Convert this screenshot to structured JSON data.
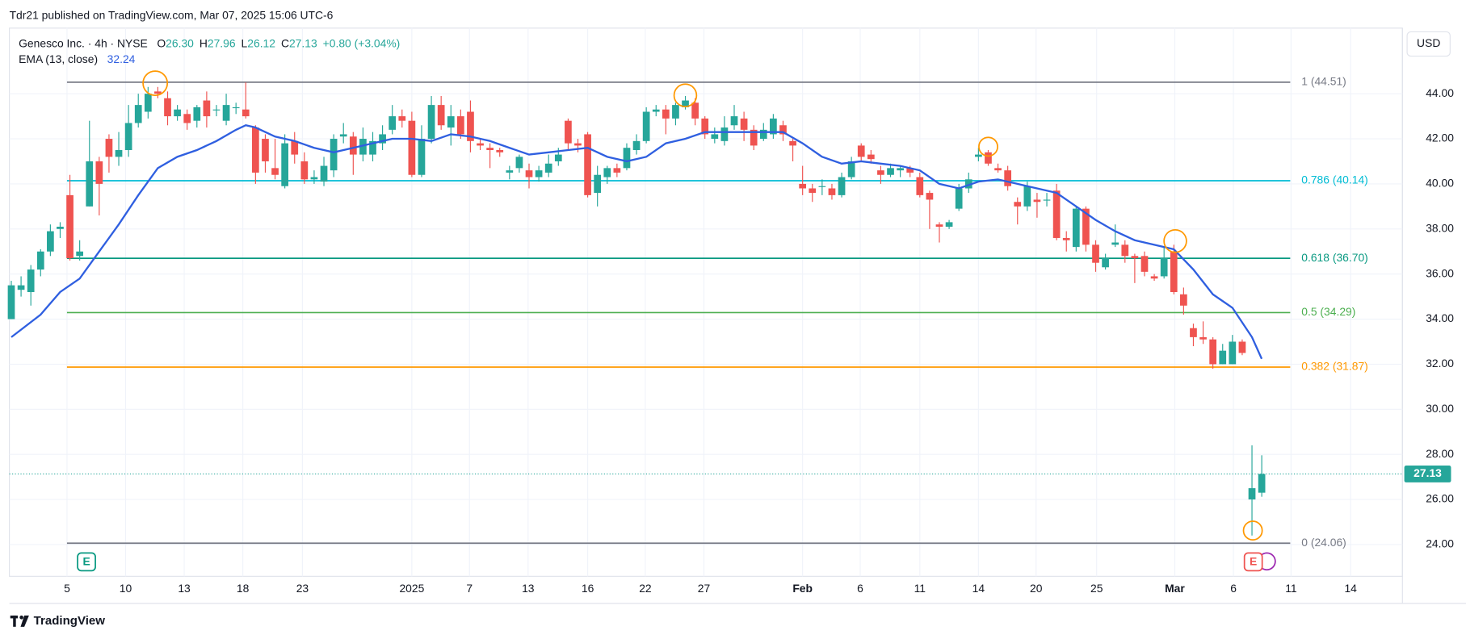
{
  "published": "Tdr21 published on TradingView.com, Mar 07, 2025 15:06 UTC-6",
  "brand": "TradingView",
  "chart_data": {
    "type": "candlestick",
    "title": "Genesco Inc. · 4h · NYSE",
    "ohlc": [
      {
        "key": "O",
        "value": 26.3,
        "label": "26.30"
      },
      {
        "key": "H",
        "value": 27.96,
        "label": "27.96"
      },
      {
        "key": "L",
        "value": 26.12,
        "label": "26.12"
      },
      {
        "key": "C",
        "value": 27.13,
        "label": "27.13"
      }
    ],
    "change": "+0.80 (+3.04%)",
    "currency": "USD",
    "up_color": "#26a69a",
    "down_color": "#ef5350",
    "candles": [
      [
        34.0,
        35.7,
        34.0,
        35.5
      ],
      [
        35.3,
        35.9,
        35.0,
        35.5
      ],
      [
        35.2,
        36.4,
        34.6,
        36.2
      ],
      [
        36.2,
        37.1,
        35.9,
        37.0
      ],
      [
        37.0,
        38.2,
        36.8,
        37.9
      ],
      [
        38.0,
        38.3,
        37.6,
        38.1
      ],
      [
        39.5,
        40.4,
        36.6,
        36.7
      ],
      [
        36.8,
        37.5,
        36.6,
        37.0
      ],
      [
        39.0,
        42.8,
        39.0,
        41.0
      ],
      [
        41.0,
        41.2,
        38.6,
        40.0
      ],
      [
        42.0,
        42.2,
        40.5,
        41.2
      ],
      [
        41.2,
        42.3,
        40.8,
        41.5
      ],
      [
        41.5,
        43.5,
        41.2,
        42.7
      ],
      [
        42.7,
        44.0,
        42.5,
        43.5
      ],
      [
        43.2,
        44.3,
        42.9,
        44.0
      ],
      [
        44.1,
        44.3,
        43.8,
        44.0
      ],
      [
        43.8,
        44.1,
        42.6,
        43.0
      ],
      [
        43.0,
        43.5,
        42.8,
        43.3
      ],
      [
        43.1,
        43.3,
        42.4,
        42.7
      ],
      [
        42.8,
        43.5,
        42.5,
        43.4
      ],
      [
        43.7,
        44.1,
        42.5,
        43.0
      ],
      [
        43.3,
        43.5,
        43.0,
        43.3
      ],
      [
        42.8,
        44.0,
        42.6,
        43.5
      ],
      [
        43.4,
        43.6,
        43.1,
        43.4
      ],
      [
        43.3,
        44.5,
        42.9,
        43.0
      ],
      [
        42.5,
        42.6,
        40.0,
        40.5
      ],
      [
        42.0,
        42.2,
        40.5,
        41.0
      ],
      [
        40.7,
        42.0,
        40.2,
        40.4
      ],
      [
        39.9,
        42.2,
        39.8,
        41.8
      ],
      [
        41.9,
        42.3,
        40.9,
        41.3
      ],
      [
        41.0,
        41.4,
        40.0,
        40.2
      ],
      [
        40.2,
        40.6,
        40.0,
        40.3
      ],
      [
        40.1,
        41.2,
        39.9,
        40.8
      ],
      [
        40.6,
        42.2,
        40.3,
        42.0
      ],
      [
        42.1,
        42.7,
        41.8,
        42.2
      ],
      [
        42.1,
        42.3,
        40.4,
        41.3
      ],
      [
        41.3,
        42.5,
        41.0,
        42.0
      ],
      [
        41.3,
        42.3,
        41.0,
        41.9
      ],
      [
        41.8,
        42.6,
        41.5,
        42.2
      ],
      [
        42.4,
        43.5,
        42.2,
        43.0
      ],
      [
        43.0,
        43.3,
        42.5,
        42.8
      ],
      [
        42.8,
        43.2,
        40.3,
        40.4
      ],
      [
        40.4,
        42.6,
        40.3,
        42.0
      ],
      [
        42.0,
        43.9,
        41.8,
        43.5
      ],
      [
        43.5,
        43.9,
        42.4,
        42.6
      ],
      [
        42.5,
        43.5,
        41.7,
        43.0
      ],
      [
        43.0,
        43.3,
        42.0,
        42.2
      ],
      [
        43.2,
        43.7,
        41.4,
        41.9
      ],
      [
        41.8,
        42.0,
        41.5,
        41.7
      ],
      [
        41.6,
        41.8,
        40.7,
        41.5
      ],
      [
        41.5,
        41.6,
        41.2,
        41.4
      ],
      [
        40.5,
        40.8,
        40.2,
        40.6
      ],
      [
        40.7,
        41.3,
        40.5,
        41.2
      ],
      [
        40.6,
        40.9,
        39.8,
        40.3
      ],
      [
        40.3,
        40.8,
        40.1,
        40.6
      ],
      [
        40.5,
        41.3,
        40.3,
        40.9
      ],
      [
        41.0,
        41.6,
        40.8,
        41.3
      ],
      [
        42.8,
        42.9,
        41.5,
        41.8
      ],
      [
        41.8,
        42.0,
        41.4,
        41.7
      ],
      [
        42.2,
        42.3,
        39.4,
        39.5
      ],
      [
        39.6,
        40.8,
        39.0,
        40.4
      ],
      [
        40.3,
        40.8,
        40.0,
        40.7
      ],
      [
        40.7,
        40.9,
        40.3,
        40.5
      ],
      [
        40.7,
        41.8,
        40.6,
        41.6
      ],
      [
        41.5,
        42.2,
        41.3,
        41.9
      ],
      [
        41.9,
        43.4,
        41.8,
        43.2
      ],
      [
        43.2,
        43.5,
        43.0,
        43.3
      ],
      [
        43.3,
        43.5,
        42.2,
        42.9
      ],
      [
        42.9,
        43.6,
        42.6,
        43.5
      ],
      [
        43.4,
        43.9,
        43.3,
        43.7
      ],
      [
        43.6,
        43.8,
        42.6,
        42.9
      ],
      [
        42.9,
        43.0,
        42.0,
        42.2
      ],
      [
        42.0,
        42.5,
        41.8,
        42.2
      ],
      [
        41.9,
        43.0,
        41.7,
        42.5
      ],
      [
        42.6,
        43.5,
        42.4,
        43.0
      ],
      [
        42.9,
        43.2,
        41.9,
        42.4
      ],
      [
        42.4,
        42.6,
        41.5,
        41.7
      ],
      [
        42.0,
        42.7,
        41.9,
        42.4
      ],
      [
        42.2,
        43.1,
        42.0,
        42.9
      ],
      [
        42.6,
        42.8,
        41.9,
        42.2
      ],
      [
        41.9,
        42.0,
        41.0,
        41.7
      ],
      [
        40.0,
        40.8,
        39.5,
        39.8
      ],
      [
        39.8,
        40.0,
        39.2,
        39.6
      ],
      [
        39.9,
        40.2,
        39.5,
        39.9
      ],
      [
        39.8,
        40.0,
        39.3,
        39.5
      ],
      [
        39.5,
        40.5,
        39.4,
        40.3
      ],
      [
        40.3,
        41.2,
        40.2,
        41.0
      ],
      [
        41.7,
        41.8,
        41.0,
        41.2
      ],
      [
        41.3,
        41.5,
        40.9,
        41.1
      ],
      [
        40.6,
        40.8,
        40.0,
        40.4
      ],
      [
        40.4,
        40.9,
        40.3,
        40.7
      ],
      [
        40.6,
        40.8,
        40.3,
        40.7
      ],
      [
        40.7,
        40.8,
        40.3,
        40.5
      ],
      [
        40.3,
        40.5,
        39.4,
        39.5
      ],
      [
        39.6,
        39.7,
        38.0,
        39.3
      ],
      [
        38.2,
        38.3,
        37.4,
        38.1
      ],
      [
        38.1,
        38.4,
        38.0,
        38.3
      ],
      [
        38.9,
        40.0,
        38.8,
        39.8
      ],
      [
        39.8,
        40.5,
        39.6,
        40.2
      ],
      [
        41.2,
        41.6,
        41.0,
        41.3
      ],
      [
        41.4,
        41.5,
        40.8,
        40.9
      ],
      [
        40.7,
        40.9,
        40.5,
        40.6
      ],
      [
        40.6,
        40.8,
        39.7,
        39.9
      ],
      [
        39.2,
        39.4,
        38.2,
        39.0
      ],
      [
        39.0,
        40.1,
        38.8,
        39.9
      ],
      [
        39.3,
        39.6,
        38.5,
        39.2
      ],
      [
        39.3,
        39.6,
        39.0,
        39.3
      ],
      [
        39.7,
        40.0,
        37.5,
        37.6
      ],
      [
        37.6,
        37.9,
        37.0,
        37.5
      ],
      [
        37.2,
        39.0,
        37.0,
        38.9
      ],
      [
        38.9,
        39.0,
        37.0,
        37.3
      ],
      [
        37.3,
        37.5,
        36.1,
        36.5
      ],
      [
        36.3,
        36.9,
        36.2,
        36.7
      ],
      [
        37.3,
        38.2,
        37.2,
        37.4
      ],
      [
        37.3,
        37.5,
        36.5,
        36.8
      ],
      [
        36.8,
        36.9,
        35.6,
        36.7
      ],
      [
        36.8,
        37.0,
        35.9,
        36.1
      ],
      [
        35.9,
        36.0,
        35.7,
        35.8
      ],
      [
        35.9,
        37.2,
        35.8,
        36.7
      ],
      [
        37.0,
        37.3,
        35.1,
        35.2
      ],
      [
        35.1,
        35.4,
        34.2,
        34.6
      ],
      [
        33.6,
        33.8,
        32.8,
        33.2
      ],
      [
        33.2,
        33.9,
        32.9,
        33.1
      ],
      [
        33.1,
        33.2,
        31.8,
        32.0
      ],
      [
        32.0,
        32.9,
        32.0,
        32.6
      ],
      [
        32.0,
        33.3,
        32.0,
        33.0
      ],
      [
        33.0,
        33.1,
        32.4,
        32.5
      ],
      [
        26.0,
        28.4,
        24.4,
        26.5
      ],
      [
        26.3,
        27.96,
        26.12,
        27.13
      ]
    ],
    "ema": {
      "name": "EMA (13, close)",
      "color": "#2f5fe0",
      "last_value": 32.24,
      "x": [
        0,
        3,
        5,
        7,
        9,
        11,
        13,
        15,
        17,
        19,
        21,
        23,
        24,
        25,
        27,
        29,
        31,
        33,
        35,
        37,
        39,
        41,
        43,
        45,
        47,
        49,
        51,
        53,
        55,
        57,
        59,
        61,
        63,
        65,
        67,
        69,
        71,
        73,
        75,
        77,
        79,
        81,
        83,
        85,
        87,
        89,
        91,
        93,
        95,
        97,
        99,
        101,
        103,
        105,
        107,
        109,
        111,
        113,
        115,
        117,
        119,
        121,
        123,
        125,
        127,
        128
      ],
      "values": [
        33.2,
        34.2,
        35.2,
        35.8,
        37.0,
        38.2,
        39.5,
        40.7,
        41.2,
        41.5,
        41.9,
        42.4,
        42.6,
        42.5,
        42.1,
        41.9,
        41.6,
        41.4,
        41.6,
        41.8,
        42.0,
        42.0,
        41.9,
        42.2,
        42.1,
        41.9,
        41.6,
        41.3,
        41.4,
        41.5,
        41.6,
        41.2,
        41.0,
        41.2,
        41.8,
        42.0,
        42.3,
        42.3,
        42.3,
        42.3,
        42.3,
        41.8,
        41.2,
        40.9,
        41.0,
        40.9,
        40.8,
        40.6,
        40.0,
        39.8,
        40.1,
        40.2,
        40.0,
        39.8,
        39.6,
        39.0,
        38.4,
        37.9,
        37.5,
        37.3,
        37.1,
        36.2,
        35.1,
        34.5,
        33.2,
        32.24
      ]
    },
    "fib_levels": [
      {
        "value": 44.51,
        "label": "1 (44.51)",
        "color": "#787b86"
      },
      {
        "value": 40.14,
        "label": "0.786 (40.14)",
        "color": "#00bcd4"
      },
      {
        "value": 36.7,
        "label": "0.618 (36.70)",
        "color": "#089981"
      },
      {
        "value": 34.29,
        "label": "0.5 (34.29)",
        "color": "#4caf50"
      },
      {
        "value": 31.87,
        "label": "0.382 (31.87)",
        "color": "#ff9800"
      },
      {
        "value": 24.06,
        "label": "0 (24.06)",
        "color": "#787b86"
      }
    ],
    "last_price": 27.13,
    "events": [
      "E",
      "E"
    ],
    "ylim": [
      22.59,
      46.91
    ],
    "yticks": [
      {
        "value": 24,
        "label": "24.00"
      },
      {
        "value": 26,
        "label": "26.00"
      },
      {
        "value": 28,
        "label": "28.00"
      },
      {
        "value": 30,
        "label": "30.00"
      },
      {
        "value": 32,
        "label": "32.00"
      },
      {
        "value": 34,
        "label": "34.00"
      },
      {
        "value": 36,
        "label": "36.00"
      },
      {
        "value": 38,
        "label": "38.00"
      },
      {
        "value": 40,
        "label": "40.00"
      },
      {
        "value": 42,
        "label": "42.00"
      },
      {
        "value": 44,
        "label": "44.00"
      }
    ],
    "xlim": [
      -0.2,
      142.4
    ],
    "xticks": [
      {
        "value": 5.7,
        "label": "5"
      },
      {
        "value": 11.7,
        "label": "10"
      },
      {
        "value": 17.7,
        "label": "13"
      },
      {
        "value": 23.7,
        "label": "18"
      },
      {
        "value": 29.8,
        "label": "23"
      },
      {
        "value": 41.0,
        "label": "2025"
      },
      {
        "value": 46.9,
        "label": "7"
      },
      {
        "value": 52.9,
        "label": "13"
      },
      {
        "value": 59.0,
        "label": "16"
      },
      {
        "value": 64.9,
        "label": "22"
      },
      {
        "value": 70.9,
        "label": "27"
      },
      {
        "value": 81.0,
        "label": "Feb"
      },
      {
        "value": 86.9,
        "label": "6"
      },
      {
        "value": 93.0,
        "label": "11"
      },
      {
        "value": 99.0,
        "label": "14"
      },
      {
        "value": 104.9,
        "label": "20"
      },
      {
        "value": 111.1,
        "label": "25"
      },
      {
        "value": 119.1,
        "label": "Mar"
      },
      {
        "value": 125.1,
        "label": "6"
      },
      {
        "value": 131.0,
        "label": "11"
      },
      {
        "value": 137.1,
        "label": "14"
      }
    ],
    "grid": true
  }
}
